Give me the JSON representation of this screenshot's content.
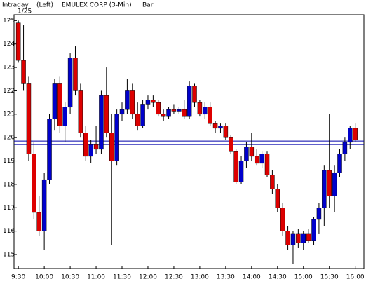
{
  "chart_data": {
    "type": "candlestick",
    "header": [
      "Intraday",
      "(Left)",
      "EMULEX CORP (3-Min)",
      "Bar"
    ],
    "date": "1/25",
    "x": [
      0,
      6,
      12,
      18,
      24,
      30,
      36,
      42,
      48,
      54,
      60,
      66,
      72,
      78,
      84,
      90,
      96,
      102,
      108,
      114,
      120,
      126,
      132,
      138,
      144,
      150,
      156,
      162,
      168,
      174,
      180,
      186,
      192,
      198,
      204,
      210,
      216,
      222,
      228,
      234,
      240,
      246,
      252,
      258,
      264,
      270,
      276,
      282,
      288,
      294,
      300,
      306,
      312,
      318,
      324,
      330,
      336,
      342,
      348,
      354,
      360,
      366,
      372,
      378,
      384,
      390
    ],
    "open": [
      124.9,
      123.3,
      122.3,
      119.3,
      116.8,
      116.0,
      118.2,
      120.8,
      122.3,
      120.5,
      121.3,
      123.4,
      122.0,
      120.2,
      119.2,
      119.7,
      119.5,
      121.8,
      120.2,
      119.0,
      121.0,
      121.2,
      122.0,
      121.0,
      120.5,
      121.4,
      121.6,
      121.5,
      121.0,
      120.9,
      121.2,
      121.1,
      121.2,
      120.9,
      122.2,
      121.5,
      121.0,
      121.3,
      120.6,
      120.4,
      120.5,
      120.0,
      119.4,
      118.1,
      119.0,
      119.6,
      119.2,
      118.9,
      119.3,
      118.4,
      117.8,
      117.0,
      116.0,
      115.4,
      115.9,
      115.5,
      115.9,
      115.6,
      116.5,
      117.0,
      118.6,
      117.5,
      118.5,
      119.3,
      119.8,
      120.4
    ],
    "high": [
      125.0,
      124.8,
      122.6,
      119.8,
      117.5,
      118.5,
      121.0,
      122.5,
      122.6,
      121.5,
      123.6,
      123.9,
      122.3,
      120.5,
      119.9,
      120.5,
      122.0,
      123.0,
      121.0,
      121.2,
      121.5,
      122.5,
      122.3,
      121.5,
      121.6,
      121.8,
      121.8,
      121.6,
      121.2,
      121.3,
      121.4,
      121.3,
      121.6,
      122.4,
      122.3,
      121.6,
      121.5,
      121.5,
      120.7,
      120.6,
      120.6,
      120.1,
      119.5,
      119.2,
      119.8,
      120.2,
      119.5,
      119.4,
      119.4,
      118.6,
      118.0,
      117.2,
      116.2,
      116.0,
      116.1,
      116.0,
      116.1,
      116.6,
      117.2,
      118.8,
      121.0,
      118.8,
      119.5,
      120.0,
      120.5,
      120.6
    ],
    "low": [
      123.2,
      122.0,
      119.0,
      116.5,
      115.8,
      115.2,
      118.0,
      120.3,
      120.2,
      119.8,
      121.0,
      121.8,
      120.0,
      119.0,
      118.9,
      119.3,
      119.3,
      120.0,
      115.4,
      118.8,
      120.7,
      121.0,
      120.8,
      120.3,
      120.4,
      121.2,
      121.3,
      120.9,
      120.7,
      120.8,
      121.0,
      121.0,
      120.8,
      120.8,
      121.3,
      120.9,
      120.8,
      120.5,
      120.2,
      120.2,
      119.9,
      119.3,
      118.0,
      118.0,
      118.7,
      119.0,
      118.8,
      118.7,
      118.3,
      117.6,
      116.8,
      115.8,
      115.2,
      114.6,
      115.3,
      115.2,
      115.5,
      115.4,
      115.9,
      116.2,
      117.0,
      116.8,
      118.3,
      119.0,
      119.5,
      119.8
    ],
    "close": [
      123.3,
      122.3,
      119.3,
      116.8,
      116.0,
      118.2,
      120.8,
      122.3,
      120.5,
      121.3,
      123.4,
      122.0,
      120.2,
      119.2,
      119.7,
      119.5,
      121.8,
      120.2,
      119.0,
      121.0,
      121.2,
      122.0,
      121.0,
      120.5,
      121.4,
      121.6,
      121.5,
      121.0,
      120.9,
      121.2,
      121.1,
      121.2,
      120.9,
      122.2,
      121.5,
      121.0,
      121.3,
      120.6,
      120.4,
      120.5,
      120.0,
      119.4,
      118.1,
      119.0,
      119.6,
      119.2,
      118.9,
      119.3,
      118.4,
      117.8,
      117.0,
      116.0,
      115.4,
      115.9,
      115.5,
      115.9,
      115.6,
      116.5,
      117.0,
      118.6,
      117.5,
      118.5,
      119.3,
      119.8,
      120.4,
      119.9
    ],
    "up_color": "#0000cc",
    "down_color": "#dd0000",
    "wick_color": "#000000",
    "reference_lines": [
      119.85,
      119.7
    ],
    "reference_color": "#0000aa",
    "xlim": [
      -5,
      400
    ],
    "xticks": [
      {
        "value": 0,
        "label": "9:30"
      },
      {
        "value": 30,
        "label": "10:00"
      },
      {
        "value": 60,
        "label": "10:30"
      },
      {
        "value": 90,
        "label": "11:00"
      },
      {
        "value": 120,
        "label": "11:30"
      },
      {
        "value": 150,
        "label": "12:00"
      },
      {
        "value": 180,
        "label": "12:30"
      },
      {
        "value": 210,
        "label": "13:00"
      },
      {
        "value": 240,
        "label": "13:30"
      },
      {
        "value": 270,
        "label": "14:00"
      },
      {
        "value": 300,
        "label": "14:30"
      },
      {
        "value": 330,
        "label": "15:00"
      },
      {
        "value": 360,
        "label": "15:30"
      },
      {
        "value": 390,
        "label": "16:00"
      }
    ],
    "ylim": [
      114.4,
      125.25
    ],
    "yticks": [
      115,
      116,
      117,
      118,
      119,
      120,
      121,
      122,
      123,
      124,
      125
    ]
  }
}
